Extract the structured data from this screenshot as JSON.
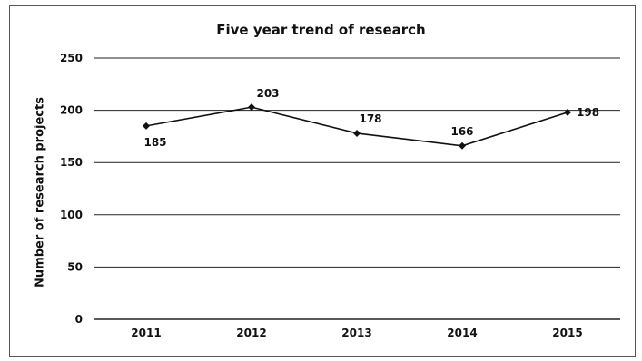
{
  "chart_data": {
    "type": "line",
    "title": "Five year trend of research",
    "xlabel": "",
    "ylabel": "Number of research projects",
    "categories": [
      "2011",
      "2012",
      "2013",
      "2014",
      "2015"
    ],
    "series": [
      {
        "values": [
          185,
          203,
          178,
          166,
          198
        ]
      }
    ],
    "data_labels": [
      "185",
      "203",
      "178",
      "166",
      "198"
    ],
    "ylim": [
      0,
      250
    ],
    "yticks": [
      0,
      50,
      100,
      150,
      200,
      250
    ],
    "grid": true,
    "legend": "none",
    "line_color": "#111111",
    "marker": "diamond"
  }
}
